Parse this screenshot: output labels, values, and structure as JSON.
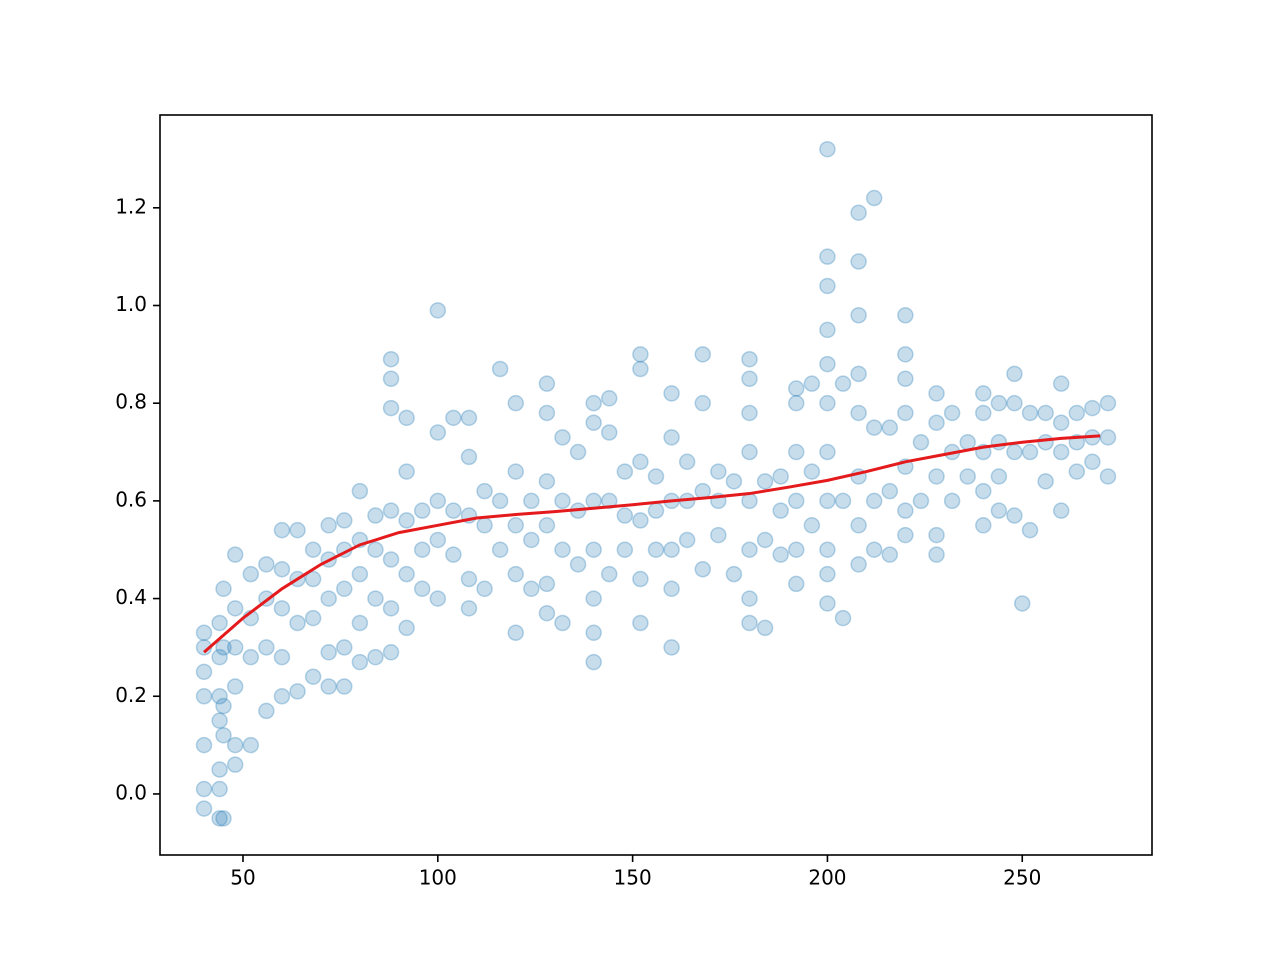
{
  "chart_data": {
    "type": "scatter",
    "xlim": [
      28.7,
      283.3
    ],
    "ylim": [
      -0.125,
      1.39
    ],
    "xticks": [
      50,
      100,
      150,
      200,
      250
    ],
    "yticks": [
      {
        "value": 0,
        "label": "0.0"
      },
      0.2,
      0.4,
      0.6,
      0.8,
      {
        "value": 1,
        "label": "1.0"
      },
      1.2
    ],
    "grid": false,
    "series": [
      {
        "type": "scatter",
        "color": "#1f77b4",
        "x": [
          40,
          40,
          40,
          40,
          40,
          40,
          40,
          44,
          44,
          44,
          44,
          44,
          44,
          44,
          45,
          45,
          45,
          45,
          45,
          48,
          48,
          48,
          48,
          48,
          48,
          52,
          52,
          52,
          52,
          56,
          56,
          56,
          56,
          60,
          60,
          60,
          60,
          60,
          64,
          64,
          64,
          64,
          68,
          68,
          68,
          68,
          72,
          72,
          72,
          72,
          72,
          76,
          76,
          76,
          76,
          76,
          80,
          80,
          80,
          80,
          80,
          84,
          84,
          84,
          84,
          88,
          88,
          88,
          88,
          88,
          88,
          88,
          92,
          92,
          92,
          92,
          92,
          96,
          96,
          96,
          100,
          100,
          100,
          100,
          100,
          104,
          104,
          104,
          108,
          108,
          108,
          108,
          108,
          112,
          112,
          112,
          116,
          116,
          116,
          120,
          120,
          120,
          120,
          120,
          124,
          124,
          124,
          128,
          128,
          128,
          128,
          128,
          128,
          132,
          132,
          132,
          132,
          136,
          136,
          136,
          140,
          140,
          140,
          140,
          140,
          140,
          140,
          144,
          144,
          144,
          144,
          148,
          148,
          148,
          152,
          152,
          152,
          152,
          152,
          152,
          156,
          156,
          156,
          160,
          160,
          160,
          160,
          160,
          160,
          164,
          164,
          164,
          168,
          168,
          168,
          168,
          172,
          172,
          172,
          176,
          176,
          180,
          180,
          180,
          180,
          180,
          180,
          180,
          180,
          184,
          184,
          184,
          188,
          188,
          188,
          192,
          192,
          192,
          192,
          192,
          192,
          196,
          196,
          196,
          200,
          200,
          200,
          200,
          200,
          200,
          200,
          200,
          200,
          200,
          200,
          204,
          204,
          204,
          208,
          208,
          208,
          208,
          208,
          208,
          208,
          208,
          212,
          212,
          212,
          212,
          216,
          216,
          216,
          220,
          220,
          220,
          220,
          220,
          220,
          220,
          224,
          224,
          228,
          228,
          228,
          228,
          228,
          232,
          232,
          232,
          236,
          236,
          240,
          240,
          240,
          240,
          240,
          244,
          244,
          244,
          244,
          248,
          248,
          248,
          248,
          250,
          252,
          252,
          252,
          256,
          256,
          256,
          260,
          260,
          260,
          260,
          264,
          264,
          264,
          268,
          268,
          268,
          272,
          272,
          272
        ],
        "y": [
          0.3,
          0.25,
          0.2,
          0.1,
          0.01,
          -0.03,
          0.33,
          0.35,
          0.28,
          0.2,
          0.15,
          0.05,
          0.01,
          -0.05,
          0.42,
          0.3,
          0.18,
          0.12,
          -0.05,
          0.49,
          0.38,
          0.3,
          0.22,
          0.1,
          0.06,
          0.45,
          0.36,
          0.28,
          0.1,
          0.47,
          0.4,
          0.3,
          0.17,
          0.54,
          0.46,
          0.38,
          0.28,
          0.2,
          0.54,
          0.44,
          0.35,
          0.21,
          0.5,
          0.44,
          0.36,
          0.24,
          0.55,
          0.48,
          0.4,
          0.29,
          0.22,
          0.56,
          0.5,
          0.42,
          0.3,
          0.22,
          0.62,
          0.52,
          0.45,
          0.35,
          0.27,
          0.57,
          0.5,
          0.4,
          0.28,
          0.89,
          0.85,
          0.79,
          0.58,
          0.48,
          0.38,
          0.29,
          0.77,
          0.66,
          0.56,
          0.45,
          0.34,
          0.58,
          0.5,
          0.42,
          0.99,
          0.74,
          0.6,
          0.52,
          0.4,
          0.77,
          0.58,
          0.49,
          0.77,
          0.69,
          0.57,
          0.44,
          0.38,
          0.62,
          0.55,
          0.42,
          0.87,
          0.6,
          0.5,
          0.8,
          0.66,
          0.55,
          0.45,
          0.33,
          0.6,
          0.52,
          0.42,
          0.84,
          0.78,
          0.64,
          0.55,
          0.43,
          0.37,
          0.73,
          0.6,
          0.5,
          0.35,
          0.7,
          0.58,
          0.47,
          0.8,
          0.76,
          0.6,
          0.5,
          0.4,
          0.33,
          0.27,
          0.81,
          0.74,
          0.6,
          0.45,
          0.66,
          0.57,
          0.5,
          0.9,
          0.87,
          0.68,
          0.56,
          0.44,
          0.35,
          0.65,
          0.58,
          0.5,
          0.82,
          0.73,
          0.6,
          0.5,
          0.42,
          0.3,
          0.68,
          0.6,
          0.52,
          0.9,
          0.8,
          0.62,
          0.46,
          0.66,
          0.6,
          0.53,
          0.64,
          0.45,
          0.89,
          0.85,
          0.78,
          0.7,
          0.6,
          0.5,
          0.4,
          0.35,
          0.64,
          0.52,
          0.34,
          0.65,
          0.58,
          0.49,
          0.83,
          0.8,
          0.7,
          0.6,
          0.5,
          0.43,
          0.84,
          0.66,
          0.55,
          1.32,
          1.1,
          1.04,
          0.95,
          0.88,
          0.8,
          0.7,
          0.6,
          0.5,
          0.45,
          0.39,
          0.84,
          0.6,
          0.36,
          1.19,
          1.09,
          0.98,
          0.86,
          0.78,
          0.65,
          0.55,
          0.47,
          1.22,
          0.75,
          0.6,
          0.5,
          0.75,
          0.62,
          0.49,
          0.98,
          0.9,
          0.85,
          0.78,
          0.67,
          0.58,
          0.53,
          0.72,
          0.6,
          0.82,
          0.76,
          0.65,
          0.53,
          0.49,
          0.78,
          0.7,
          0.6,
          0.72,
          0.65,
          0.82,
          0.78,
          0.7,
          0.62,
          0.55,
          0.8,
          0.72,
          0.65,
          0.58,
          0.86,
          0.8,
          0.7,
          0.57,
          0.39,
          0.78,
          0.7,
          0.54,
          0.78,
          0.72,
          0.64,
          0.84,
          0.76,
          0.7,
          0.58,
          0.78,
          0.72,
          0.66,
          0.79,
          0.73,
          0.68,
          0.8,
          0.73,
          0.65
        ]
      },
      {
        "type": "line",
        "color": "#e41a1c",
        "x": [
          40,
          50,
          60,
          70,
          80,
          90,
          100,
          110,
          120,
          130,
          140,
          150,
          160,
          170,
          180,
          190,
          200,
          210,
          220,
          230,
          240,
          250,
          260,
          270
        ],
        "y": [
          0.29,
          0.36,
          0.42,
          0.47,
          0.51,
          0.535,
          0.55,
          0.565,
          0.572,
          0.578,
          0.585,
          0.592,
          0.6,
          0.607,
          0.615,
          0.628,
          0.642,
          0.66,
          0.68,
          0.695,
          0.71,
          0.72,
          0.728,
          0.733
        ]
      }
    ]
  }
}
